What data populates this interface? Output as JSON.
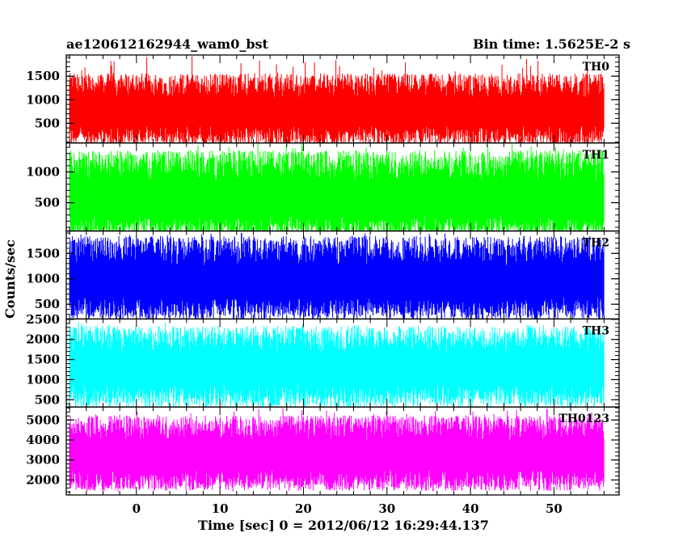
{
  "header": {
    "title": "ae120612162944_wam0_bst",
    "bin_time": "Bin time: 1.5625E-2 s"
  },
  "chart_data": {
    "type": "line",
    "xlabel": "Time [sec] 0 = 2012/06/12 16:29:44.137",
    "ylabel": "Counts/sec",
    "xlim": [
      -8.4,
      57.8
    ],
    "x_ticks": [
      0,
      10,
      20,
      30,
      40,
      50
    ],
    "x_range_data": [
      -8,
      56
    ],
    "panels": [
      {
        "name": "TH0",
        "color": "#ff0000",
        "ylim": [
          80,
          1950
        ],
        "yticks": [
          500,
          1000,
          1500
        ],
        "band": {
          "mean": 720,
          "lo_typ": 230,
          "hi_typ": 1300,
          "lo_ext": 130,
          "hi_ext": 1950
        }
      },
      {
        "name": "TH1",
        "color": "#00ff00",
        "ylim": [
          40,
          1470
        ],
        "yticks": [
          500,
          1000
        ],
        "band": {
          "mean": 540,
          "lo_typ": 120,
          "hi_typ": 1100,
          "lo_ext": 40,
          "hi_ext": 1470
        }
      },
      {
        "name": "TH2",
        "color": "#0000ff",
        "ylim": [
          210,
          1940
        ],
        "yticks": [
          500,
          1000,
          1500
        ],
        "band": {
          "mean": 900,
          "lo_typ": 420,
          "hi_typ": 1550,
          "lo_ext": 250,
          "hi_ext": 1940
        }
      },
      {
        "name": "TH3",
        "color": "#00ffff",
        "ylim": [
          320,
          2510
        ],
        "yticks": [
          500,
          1000,
          1500,
          2000,
          2500
        ],
        "band": {
          "mean": 1250,
          "lo_typ": 600,
          "hi_typ": 2000,
          "lo_ext": 400,
          "hi_ext": 2450
        }
      },
      {
        "name": "TH0123",
        "color": "#ff00ff",
        "ylim": [
          1250,
          5650
        ],
        "yticks": [
          2000,
          3000,
          4000,
          5000
        ],
        "band": {
          "mean": 3200,
          "lo_typ": 2000,
          "hi_typ": 4600,
          "lo_ext": 1400,
          "hi_ext": 5650
        }
      }
    ]
  }
}
